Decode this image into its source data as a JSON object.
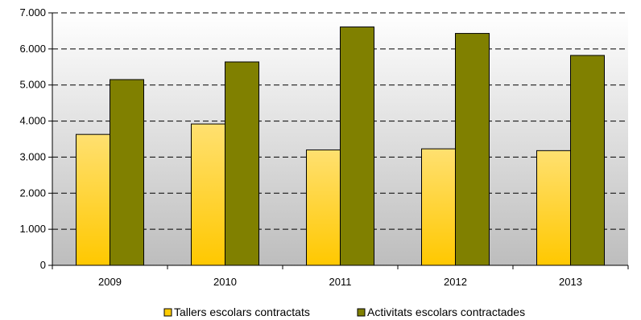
{
  "chart_data": {
    "type": "bar",
    "categories": [
      "2009",
      "2010",
      "2011",
      "2012",
      "2013"
    ],
    "series": [
      {
        "name": "Tallers escolars contractats",
        "values": [
          3630,
          3920,
          3200,
          3230,
          3180
        ],
        "color": "#FFCC00"
      },
      {
        "name": "Activitats escolars contractades",
        "values": [
          5150,
          5640,
          6610,
          6430,
          5820
        ],
        "color": "#808000"
      }
    ],
    "y_ticks": [
      "0",
      "1.000",
      "2.000",
      "3.000",
      "4.000",
      "5.000",
      "6.000",
      "7.000"
    ],
    "ylim": [
      0,
      7000
    ],
    "grid": "horizontal dashed",
    "legend_position": "bottom",
    "title": "",
    "xlabel": "",
    "ylabel": ""
  }
}
